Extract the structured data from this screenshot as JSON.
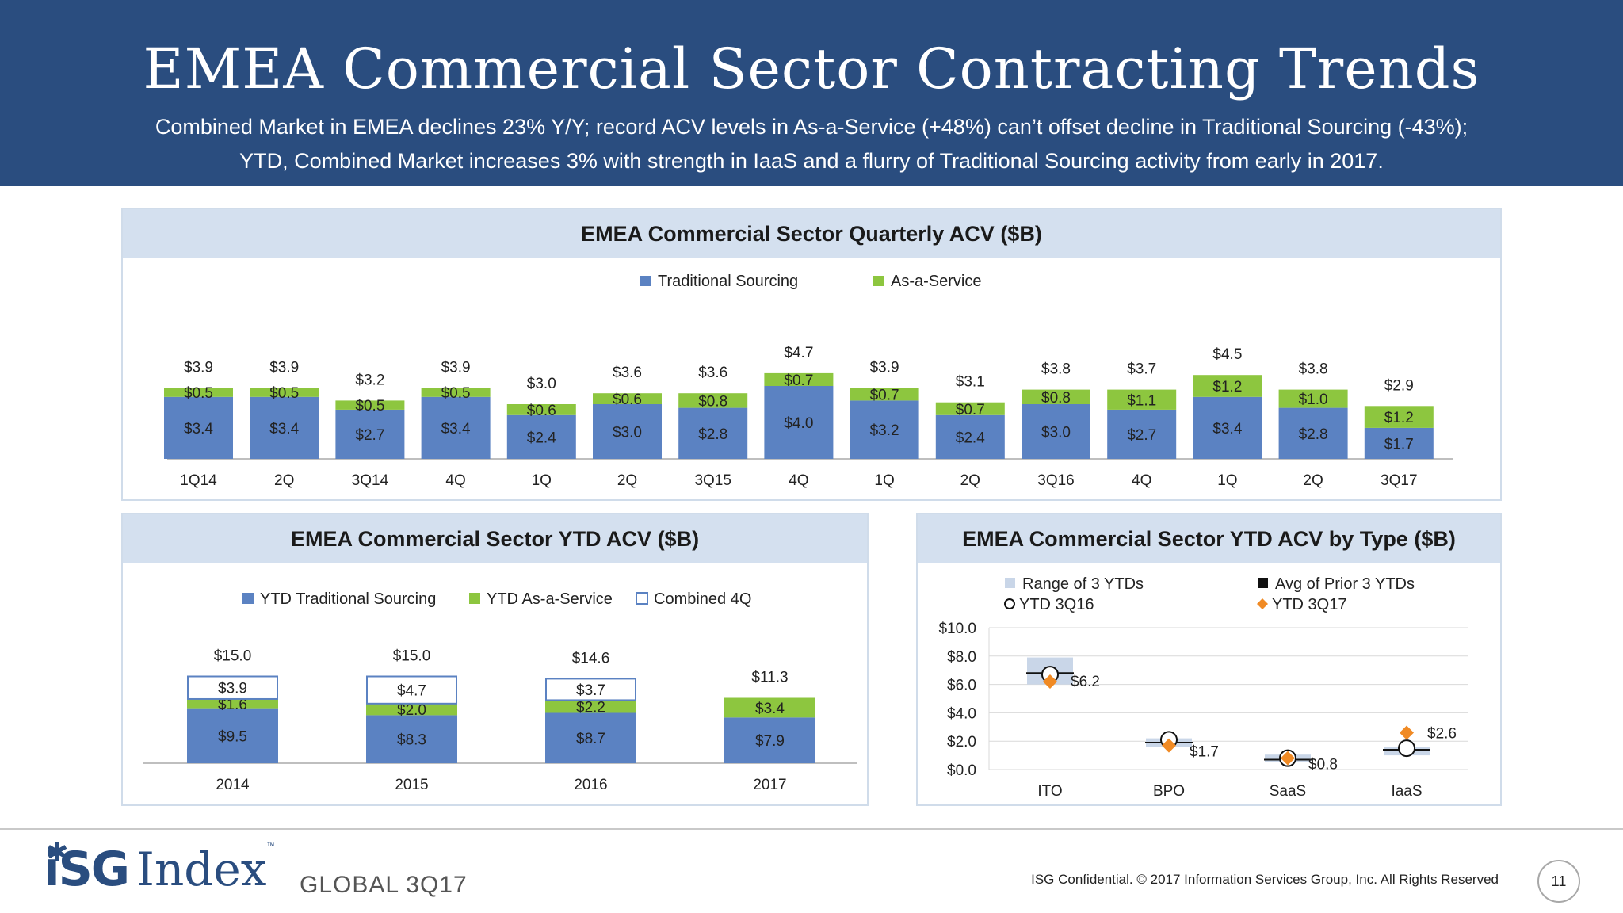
{
  "header": {
    "title": "EMEA Commercial Sector Contracting Trends",
    "subtitle_line1": "Combined Market in EMEA declines 23% Y/Y; record ACV levels in As-a-Service (+48%) can’t offset decline in Traditional Sourcing (-43%);",
    "subtitle_line2": "YTD, Combined Market increases 3% with strength in IaaS and a flurry of Traditional Sourcing activity from early in 2017."
  },
  "colors": {
    "traditional": "#5b82c2",
    "as_a_service": "#8dc63f",
    "range": "#c9d6e8",
    "avg": "#111111",
    "ytd3q17": "#f08a24",
    "header": "#2a4d7f"
  },
  "footer": {
    "logo_text": "iSG",
    "logo_index": "Index",
    "logo_tm": "™",
    "edition": "GLOBAL 3Q17",
    "confidential": "ISG Confidential. © 2017 Information Services Group, Inc.  All Rights Reserved",
    "page_number": "11"
  },
  "chart_data": [
    {
      "type": "bar",
      "title": "EMEA Commercial Sector Quarterly ACV ($B)",
      "stacked": true,
      "legend_position": "top-center",
      "categories": [
        "1Q14",
        "2Q",
        "3Q14",
        "4Q",
        "1Q",
        "2Q",
        "3Q15",
        "4Q",
        "1Q",
        "2Q",
        "3Q16",
        "4Q",
        "1Q",
        "2Q",
        "3Q17"
      ],
      "series": [
        {
          "name": "Traditional Sourcing",
          "values": [
            3.4,
            3.4,
            2.7,
            3.4,
            2.4,
            3.0,
            2.8,
            4.0,
            3.2,
            2.4,
            3.0,
            2.7,
            3.4,
            2.8,
            1.7
          ]
        },
        {
          "name": "As-a-Service",
          "values": [
            0.5,
            0.5,
            0.5,
            0.5,
            0.6,
            0.6,
            0.8,
            0.7,
            0.7,
            0.7,
            0.8,
            1.1,
            1.2,
            1.0,
            1.2
          ]
        }
      ],
      "totals": [
        3.9,
        3.9,
        3.2,
        3.9,
        3.0,
        3.6,
        3.6,
        4.7,
        3.9,
        3.1,
        3.8,
        3.7,
        4.5,
        3.8,
        2.9
      ],
      "ylim": [
        0,
        5
      ]
    },
    {
      "type": "bar",
      "title": "EMEA Commercial Sector YTD ACV ($B)",
      "stacked": true,
      "legend_position": "top-center",
      "categories": [
        "2014",
        "2015",
        "2016",
        "2017"
      ],
      "series": [
        {
          "name": "YTD Traditional Sourcing",
          "values": [
            9.5,
            8.3,
            8.7,
            7.9
          ]
        },
        {
          "name": "YTD As-a-Service",
          "values": [
            1.6,
            2.0,
            2.2,
            3.4
          ]
        },
        {
          "name": "Combined 4Q",
          "values": [
            3.9,
            4.7,
            3.7,
            null
          ]
        }
      ],
      "totals": [
        15.0,
        15.0,
        14.6,
        11.3
      ],
      "ylim": [
        0,
        16
      ]
    },
    {
      "type": "scatter",
      "title": "EMEA Commercial Sector YTD ACV by Type ($B)",
      "legend_position": "top",
      "categories": [
        "ITO",
        "BPO",
        "SaaS",
        "IaaS"
      ],
      "yticks": [
        "$10.0",
        "$8.0",
        "$6.0",
        "$4.0",
        "$2.0",
        "$0.0"
      ],
      "ylim": [
        0,
        10
      ],
      "grid": true,
      "series": [
        {
          "name": "Range of 3 YTDs",
          "values": [
            [
              6.0,
              7.9
            ],
            [
              1.6,
              2.2
            ],
            [
              0.55,
              1.05
            ],
            [
              1.0,
              1.6
            ]
          ]
        },
        {
          "name": "Avg of Prior 3 YTDs",
          "values": [
            6.8,
            1.9,
            0.7,
            1.4
          ]
        },
        {
          "name": "YTD 3Q16",
          "values": [
            6.7,
            2.1,
            0.8,
            1.5
          ]
        },
        {
          "name": "YTD 3Q17",
          "values": [
            6.2,
            1.7,
            0.8,
            2.6
          ]
        }
      ],
      "point_labels": [
        "$6.2",
        "$1.7",
        "$0.8",
        "$2.6"
      ]
    }
  ]
}
